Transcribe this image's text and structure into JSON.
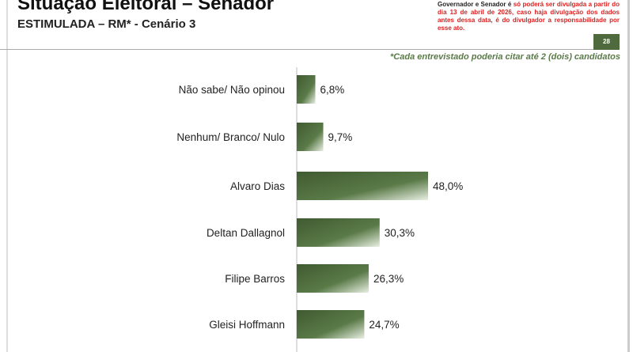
{
  "header": {
    "title": "Situação Eleitoral – Senador",
    "subtitle": "ESTIMULADA – RM* - Cenário 3",
    "notice_black": "Governador e Senador é ",
    "notice_red": "só poderá ser divulgada a partir do dia 13 de abril de 2026, caso haja divulgação dos dados antes dessa data, é do divulgador a responsabilidade por esse ato.",
    "page_number": "28",
    "footnote": "*Cada entrevistado poderia citar até 2 (dois) candidatos"
  },
  "chart_data": {
    "type": "bar",
    "orientation": "horizontal",
    "categories": [
      "Não sabe/ Não opinou",
      "Nenhum/ Branco/ Nulo",
      "Alvaro Dias",
      "Deltan Dallagnol",
      "Filipe Barros",
      "Gleisi Hoffmann"
    ],
    "values": [
      6.8,
      9.7,
      48.0,
      30.3,
      26.3,
      24.7
    ],
    "labels": [
      "6,8%",
      "9,7%",
      "48,0%",
      "30,3%",
      "26,3%",
      "24,7%"
    ],
    "bar_color": "#4f6b3d",
    "unit": "%"
  }
}
